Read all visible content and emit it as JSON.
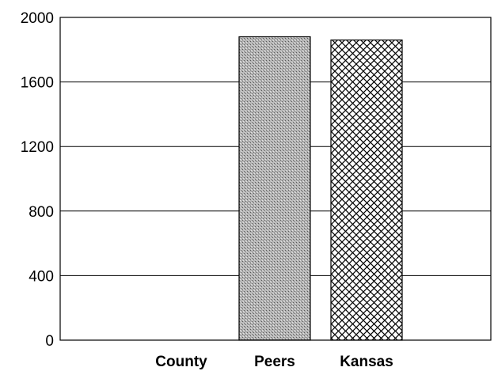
{
  "chart_data": {
    "type": "bar",
    "title": "",
    "xlabel": "",
    "ylabel": "",
    "categories": [
      "County",
      "Peers",
      "Kansas"
    ],
    "values": [
      0,
      1880,
      1860
    ],
    "ylim": [
      0,
      2000
    ],
    "yticks": [
      0,
      400,
      800,
      1200,
      1600,
      2000
    ],
    "ytick_labels": [
      "0",
      "400",
      "800",
      "1200",
      "1600",
      "2000"
    ],
    "grid": true,
    "legend": "none",
    "bar_fills": [
      "none",
      "stipple-gray",
      "crosshatch"
    ]
  }
}
